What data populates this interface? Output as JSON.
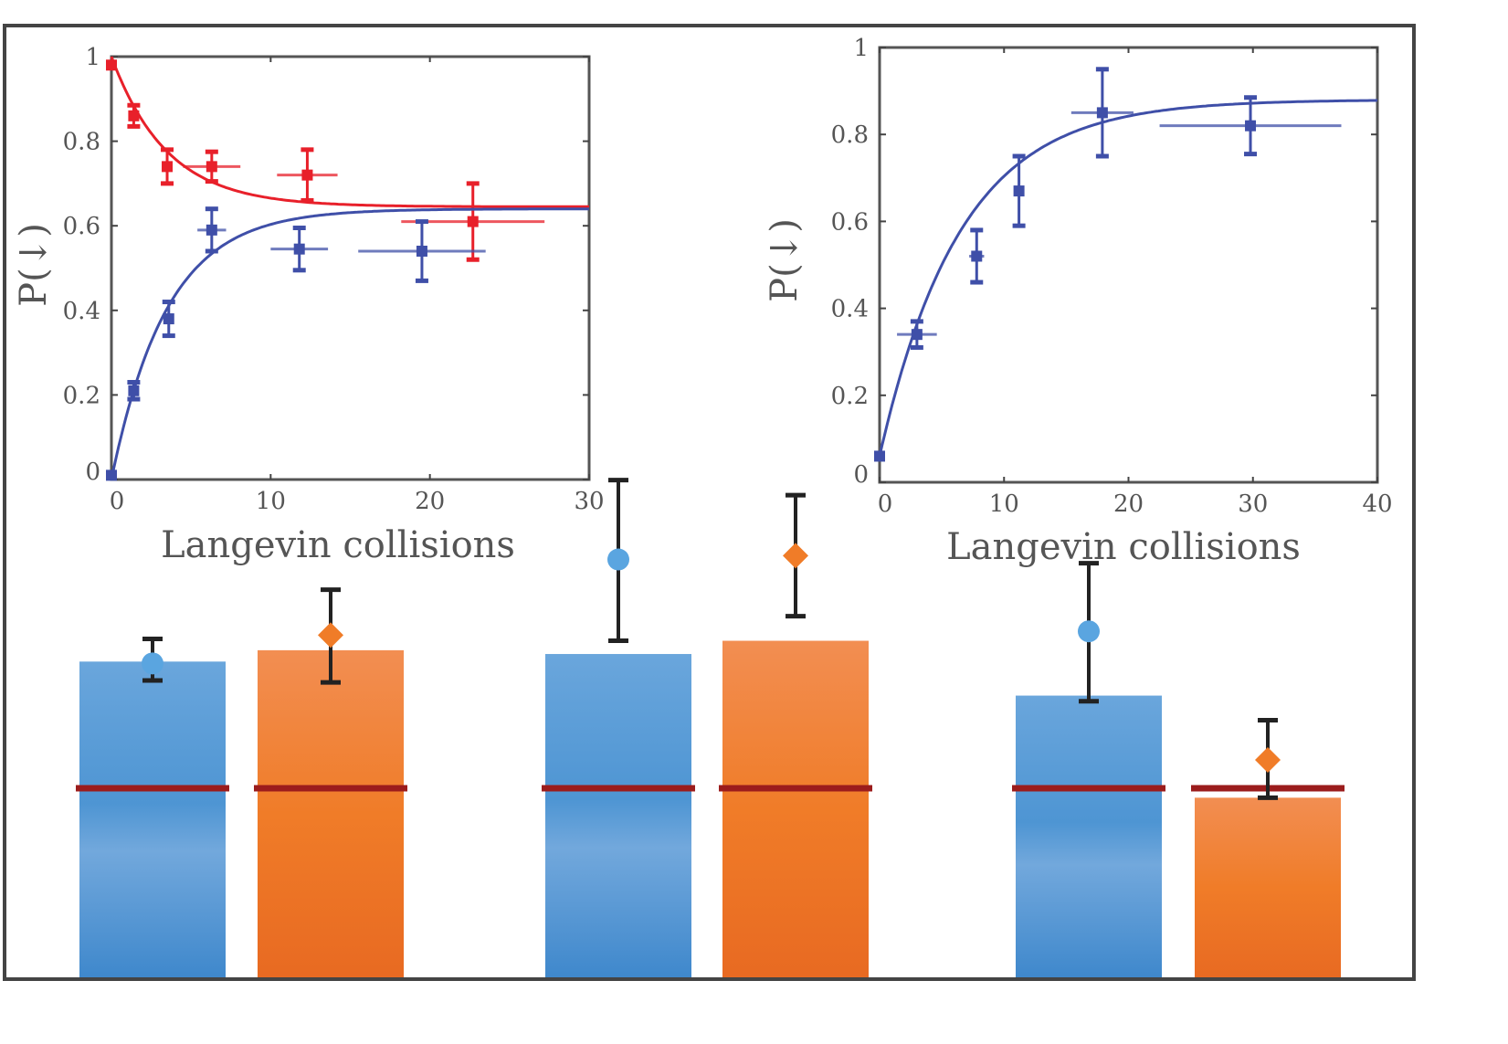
{
  "chart_data": [
    {
      "type": "bar",
      "groups": [
        {
          "bars": [
            {
              "value": 1.67,
              "color": "#4a90d0",
              "point": 1.66,
              "err": [
                1.57,
                1.79
              ],
              "marker": "circle",
              "marker_color": "#5aa5e0"
            },
            {
              "value": 1.73,
              "color": "#f07c28",
              "point": 1.81,
              "err": [
                1.56,
                2.05
              ],
              "marker": "diamond",
              "marker_color": "#f07c28"
            }
          ]
        },
        {
          "bars": [
            {
              "value": 1.71,
              "color": "#4a90d0",
              "point": 2.21,
              "err": [
                1.78,
                2.63
              ],
              "marker": "circle",
              "marker_color": "#5aa5e0"
            },
            {
              "value": 1.78,
              "color": "#f07c28",
              "point": 2.23,
              "err": [
                1.91,
                2.55
              ],
              "marker": "diamond",
              "marker_color": "#f07c28"
            }
          ]
        },
        {
          "bars": [
            {
              "value": 1.49,
              "color": "#4a90d0",
              "point": 1.83,
              "err": [
                1.46,
                2.19
              ],
              "marker": "circle",
              "marker_color": "#5aa5e0"
            },
            {
              "value": 0.95,
              "color": "#f07c28",
              "point": 1.15,
              "err": [
                0.95,
                1.36
              ],
              "marker": "diamond",
              "marker_color": "#f07c28"
            }
          ]
        }
      ],
      "reference_line": 1.0,
      "reference_color": "#9b1c1c",
      "axes_visible": false
    },
    {
      "type": "scatter",
      "xlabel": "Langevin collisions",
      "ylabel": "P(↓)",
      "xlim": [
        0,
        30
      ],
      "ylim": [
        0,
        1
      ],
      "xticks": [
        "0",
        "10",
        "20",
        "30"
      ],
      "yticks": [
        "0",
        "0.2",
        "0.4",
        "0.6",
        "0.8",
        "1"
      ],
      "grid": false,
      "series": [
        {
          "color": "#e8202a",
          "points": [
            {
              "x": 0,
              "y": 0.98,
              "yerr": 0.01,
              "xerr": 0
            },
            {
              "x": 1.4,
              "y": 0.86,
              "yerr": 0.025,
              "xerr": 0
            },
            {
              "x": 3.5,
              "y": 0.74,
              "yerr": 0.04,
              "xerr": 0
            },
            {
              "x": 6.3,
              "y": 0.74,
              "yerr": 0.035,
              "xerr": 1.8
            },
            {
              "x": 12.3,
              "y": 0.72,
              "yerr": 0.06,
              "xerr": 1.9
            },
            {
              "x": 22.7,
              "y": 0.61,
              "yerr": 0.09,
              "xerr": 4.5
            }
          ],
          "fit": {
            "asymptote": 0.645,
            "start": 1.0,
            "tau": 3.5
          }
        },
        {
          "color": "#3f4fa8",
          "points": [
            {
              "x": 0,
              "y": 0.01,
              "yerr": 0.01,
              "xerr": 0
            },
            {
              "x": 1.4,
              "y": 0.21,
              "yerr": 0.02,
              "xerr": 0
            },
            {
              "x": 3.6,
              "y": 0.38,
              "yerr": 0.04,
              "xerr": 0
            },
            {
              "x": 6.3,
              "y": 0.59,
              "yerr": 0.05,
              "xerr": 0.9
            },
            {
              "x": 11.8,
              "y": 0.545,
              "yerr": 0.05,
              "xerr": 1.8
            },
            {
              "x": 19.5,
              "y": 0.54,
              "yerr": 0.07,
              "xerr": 4.0
            }
          ],
          "fit": {
            "asymptote": 0.64,
            "start": 0.0,
            "tau": 3.5
          }
        }
      ]
    },
    {
      "type": "scatter",
      "xlabel": "Langevin collisions",
      "ylabel": "P(↓)",
      "xlim": [
        0,
        40
      ],
      "ylim": [
        0,
        1
      ],
      "xticks": [
        "0",
        "10",
        "20",
        "30",
        "40"
      ],
      "yticks": [
        "0",
        "0.2",
        "0.4",
        "0.6",
        "0.8",
        "1"
      ],
      "grid": false,
      "series": [
        {
          "color": "#3f4fa8",
          "points": [
            {
              "x": 0,
              "y": 0.06,
              "yerr": 0.01,
              "xerr": 0
            },
            {
              "x": 3.0,
              "y": 0.34,
              "yerr": 0.03,
              "xerr": 1.6
            },
            {
              "x": 7.8,
              "y": 0.52,
              "yerr": 0.06,
              "xerr": 0.6
            },
            {
              "x": 11.2,
              "y": 0.67,
              "yerr": 0.08,
              "xerr": 0.3
            },
            {
              "x": 17.9,
              "y": 0.85,
              "yerr": 0.1,
              "xerr": 2.5
            },
            {
              "x": 29.8,
              "y": 0.82,
              "yerr": 0.065,
              "xerr": 7.3
            }
          ],
          "fit": {
            "asymptote": 0.88,
            "start": 0.06,
            "tau": 6.5
          }
        }
      ]
    }
  ]
}
